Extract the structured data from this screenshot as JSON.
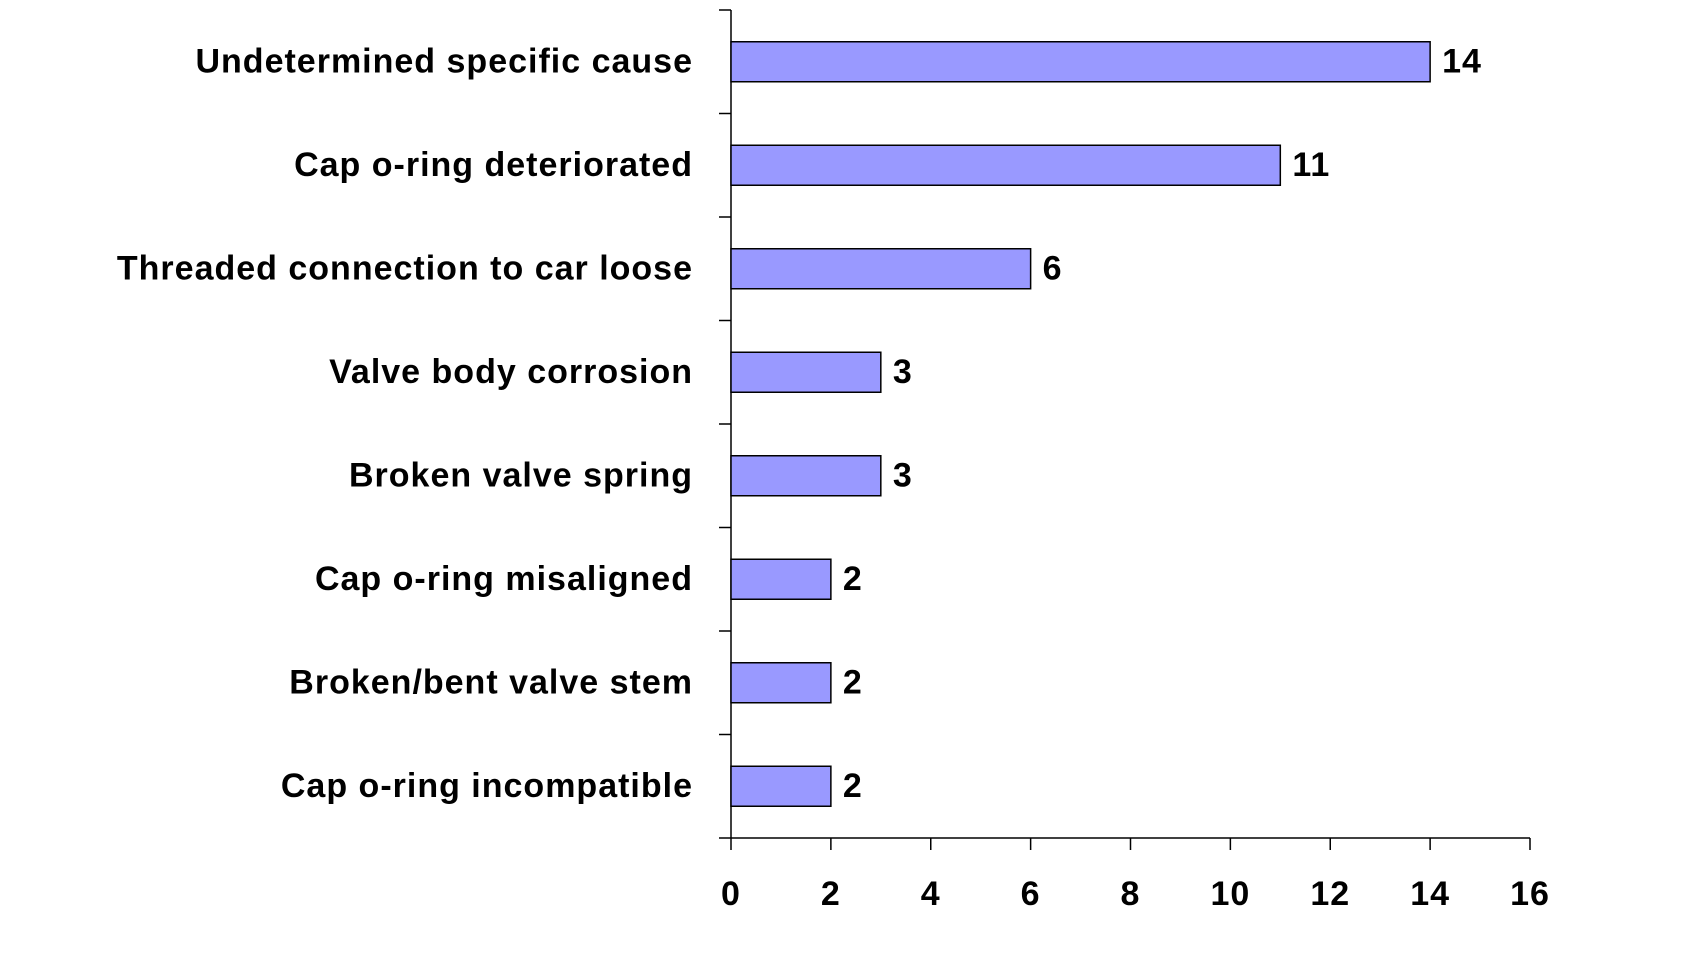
{
  "chart_data": {
    "type": "barh",
    "categories": [
      "Undetermined specific cause",
      "Cap o-ring deteriorated",
      "Threaded connection to car loose",
      "Valve body corrosion",
      "Broken valve spring",
      "Cap o-ring misaligned",
      "Broken/bent valve stem",
      "Cap o-ring incompatible"
    ],
    "values": [
      14,
      11,
      6,
      3,
      3,
      2,
      2,
      2
    ],
    "color": "#9999ff",
    "xlim": [
      0,
      16
    ],
    "xticks": [
      0,
      2,
      4,
      6,
      8,
      10,
      12,
      14,
      16
    ],
    "grid": false
  }
}
